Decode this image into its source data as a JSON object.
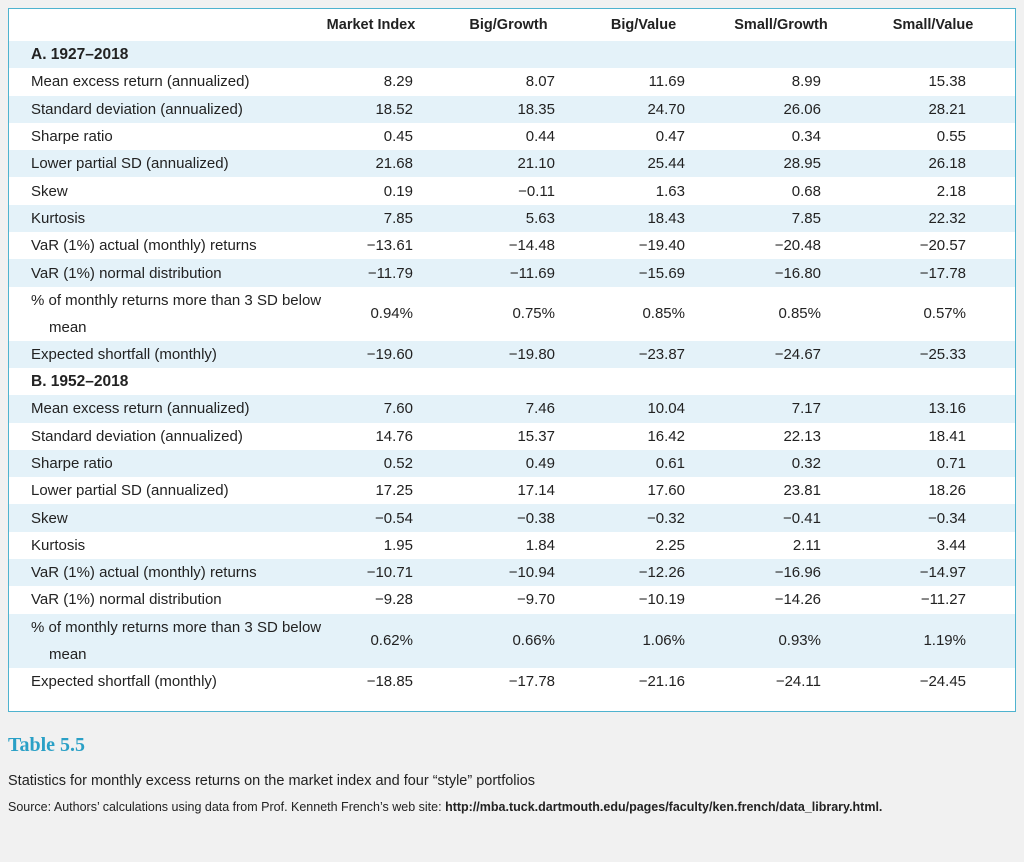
{
  "table": {
    "columns": [
      "Market Index",
      "Big/Growth",
      "Big/Value",
      "Small/Growth",
      "Small/Value"
    ],
    "sections": [
      {
        "title": "A. 1927–2018",
        "rows": [
          {
            "label": "Mean excess return (annualized)",
            "values": [
              "8.29",
              "8.07",
              "11.69",
              "8.99",
              "15.38"
            ]
          },
          {
            "label": "Standard deviation (annualized)",
            "values": [
              "18.52",
              "18.35",
              "24.70",
              "26.06",
              "28.21"
            ]
          },
          {
            "label": "Sharpe ratio",
            "values": [
              "0.45",
              "0.44",
              "0.47",
              "0.34",
              "0.55"
            ]
          },
          {
            "label": "Lower partial SD (annualized)",
            "values": [
              "21.68",
              "21.10",
              "25.44",
              "28.95",
              "26.18"
            ]
          },
          {
            "label": "Skew",
            "values": [
              "0.19",
              "−0.11",
              "1.63",
              "0.68",
              "2.18"
            ]
          },
          {
            "label": "Kurtosis",
            "values": [
              "7.85",
              "5.63",
              "18.43",
              "7.85",
              "22.32"
            ]
          },
          {
            "label": "VaR (1%) actual (monthly) returns",
            "values": [
              "−13.61",
              "−14.48",
              "−19.40",
              "−20.48",
              "−20.57"
            ]
          },
          {
            "label": "VaR (1%) normal distribution",
            "values": [
              "−11.79",
              "−11.69",
              "−15.69",
              "−16.80",
              "−17.78"
            ]
          },
          {
            "label": "% of monthly returns more than 3 SD below mean",
            "values": [
              "0.94%",
              "0.75%",
              "0.85%",
              "0.85%",
              "0.57%"
            ]
          },
          {
            "label": "Expected shortfall (monthly)",
            "values": [
              "−19.60",
              "−19.80",
              "−23.87",
              "−24.67",
              "−25.33"
            ]
          }
        ]
      },
      {
        "title": "B. 1952–2018",
        "rows": [
          {
            "label": "Mean excess return (annualized)",
            "values": [
              "7.60",
              "7.46",
              "10.04",
              "7.17",
              "13.16"
            ]
          },
          {
            "label": "Standard deviation (annualized)",
            "values": [
              "14.76",
              "15.37",
              "16.42",
              "22.13",
              "18.41"
            ]
          },
          {
            "label": "Sharpe ratio",
            "values": [
              "0.52",
              "0.49",
              "0.61",
              "0.32",
              "0.71"
            ]
          },
          {
            "label": "Lower partial SD (annualized)",
            "values": [
              "17.25",
              "17.14",
              "17.60",
              "23.81",
              "18.26"
            ]
          },
          {
            "label": "Skew",
            "values": [
              "−0.54",
              "−0.38",
              "−0.32",
              "−0.41",
              "−0.34"
            ]
          },
          {
            "label": "Kurtosis",
            "values": [
              "1.95",
              "1.84",
              "2.25",
              "2.11",
              "3.44"
            ]
          },
          {
            "label": "VaR (1%) actual (monthly) returns",
            "values": [
              "−10.71",
              "−10.94",
              "−12.26",
              "−16.96",
              "−14.97"
            ]
          },
          {
            "label": "VaR (1%) normal distribution",
            "values": [
              "−9.28",
              "−9.70",
              "−10.19",
              "−14.26",
              "−11.27"
            ]
          },
          {
            "label": "% of monthly returns more than 3 SD below mean",
            "values": [
              "0.62%",
              "0.66%",
              "1.06%",
              "0.93%",
              "1.19%"
            ]
          },
          {
            "label": "Expected shortfall (monthly)",
            "values": [
              "−18.85",
              "−17.78",
              "−21.16",
              "−24.11",
              "−24.45"
            ]
          }
        ]
      }
    ]
  },
  "caption": {
    "number": "Table 5.5",
    "title": "Statistics for monthly excess returns on the market index and four “style” portfolios",
    "source": "Source: Authors’ calculations using data from Prof. Kenneth French’s web site:",
    "url": "http://mba.tuck.dartmouth.edu/pages/faculty/ken.french/data_library.html."
  }
}
